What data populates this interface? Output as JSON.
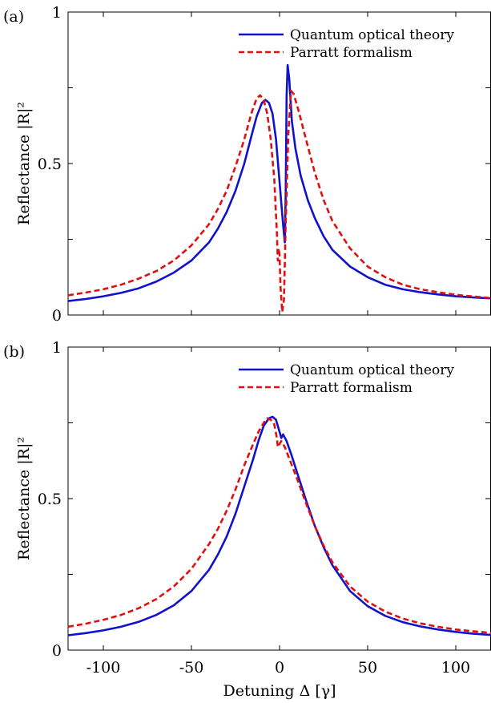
{
  "chart_data": [
    {
      "type": "line",
      "panel_label": "(a)",
      "xlabel": "",
      "ylabel": "Reflectance |R|²",
      "xlim": [
        -120,
        120
      ],
      "ylim": [
        0,
        1
      ],
      "x_ticks": [
        "-100",
        "-50",
        "0",
        "50",
        "100"
      ],
      "y_ticks": [
        "0",
        "0.5",
        "1"
      ],
      "legend_position": "top-right",
      "grid": false,
      "series": [
        {
          "name": "Quantum optical theory",
          "color": "#1111cc",
          "style": "solid",
          "points": [
            [
              -120,
              0.046
            ],
            [
              -110,
              0.053
            ],
            [
              -100,
              0.062
            ],
            [
              -90,
              0.073
            ],
            [
              -80,
              0.088
            ],
            [
              -70,
              0.11
            ],
            [
              -60,
              0.14
            ],
            [
              -50,
              0.18
            ],
            [
              -40,
              0.24
            ],
            [
              -35,
              0.285
            ],
            [
              -30,
              0.34
            ],
            [
              -25,
              0.41
            ],
            [
              -20,
              0.5
            ],
            [
              -16,
              0.59
            ],
            [
              -13,
              0.655
            ],
            [
              -10,
              0.7
            ],
            [
              -8,
              0.71
            ],
            [
              -6,
              0.7
            ],
            [
              -4,
              0.665
            ],
            [
              -2,
              0.58
            ],
            [
              0,
              0.44
            ],
            [
              2,
              0.3
            ],
            [
              3,
              0.24
            ],
            [
              3.5,
              0.4
            ],
            [
              4,
              0.72
            ],
            [
              4.6,
              0.825
            ],
            [
              5.5,
              0.78
            ],
            [
              7,
              0.64
            ],
            [
              9,
              0.55
            ],
            [
              12,
              0.46
            ],
            [
              16,
              0.38
            ],
            [
              20,
              0.32
            ],
            [
              25,
              0.26
            ],
            [
              30,
              0.215
            ],
            [
              40,
              0.16
            ],
            [
              50,
              0.125
            ],
            [
              60,
              0.1
            ],
            [
              70,
              0.085
            ],
            [
              80,
              0.075
            ],
            [
              90,
              0.068
            ],
            [
              100,
              0.062
            ],
            [
              110,
              0.058
            ],
            [
              120,
              0.055
            ]
          ]
        },
        {
          "name": "Parratt formalism",
          "color": "#e01010",
          "style": "dashed",
          "points": [
            [
              -120,
              0.065
            ],
            [
              -110,
              0.074
            ],
            [
              -100,
              0.085
            ],
            [
              -90,
              0.1
            ],
            [
              -80,
              0.12
            ],
            [
              -70,
              0.145
            ],
            [
              -60,
              0.18
            ],
            [
              -50,
              0.23
            ],
            [
              -40,
              0.3
            ],
            [
              -35,
              0.35
            ],
            [
              -30,
              0.41
            ],
            [
              -25,
              0.49
            ],
            [
              -20,
              0.58
            ],
            [
              -16,
              0.665
            ],
            [
              -13,
              0.715
            ],
            [
              -11,
              0.725
            ],
            [
              -9,
              0.71
            ],
            [
              -7,
              0.665
            ],
            [
              -5,
              0.58
            ],
            [
              -3,
              0.45
            ],
            [
              -1.5,
              0.27
            ],
            [
              -1,
              0.18
            ],
            [
              -0.5,
              0.22
            ],
            [
              0,
              0.2
            ],
            [
              0.5,
              0.1
            ],
            [
              1.5,
              0.01
            ],
            [
              2.5,
              0.05
            ],
            [
              3.5,
              0.3
            ],
            [
              5,
              0.6
            ],
            [
              6.5,
              0.74
            ],
            [
              8,
              0.73
            ],
            [
              11,
              0.67
            ],
            [
              15,
              0.58
            ],
            [
              20,
              0.47
            ],
            [
              25,
              0.38
            ],
            [
              30,
              0.31
            ],
            [
              40,
              0.22
            ],
            [
              50,
              0.16
            ],
            [
              60,
              0.125
            ],
            [
              70,
              0.1
            ],
            [
              80,
              0.085
            ],
            [
              90,
              0.075
            ],
            [
              100,
              0.067
            ],
            [
              110,
              0.061
            ],
            [
              120,
              0.056
            ]
          ]
        }
      ]
    },
    {
      "type": "line",
      "panel_label": "(b)",
      "xlabel": "Detuning Δ [γ]",
      "ylabel": "Reflectance |R|²",
      "xlim": [
        -120,
        120
      ],
      "ylim": [
        0,
        1
      ],
      "x_ticks": [
        "-100",
        "-50",
        "0",
        "50",
        "100"
      ],
      "y_ticks": [
        "0",
        "0.5",
        "1"
      ],
      "legend_position": "top-right",
      "grid": false,
      "series": [
        {
          "name": "Quantum optical theory",
          "color": "#1111cc",
          "style": "solid",
          "points": [
            [
              -120,
              0.049
            ],
            [
              -110,
              0.056
            ],
            [
              -100,
              0.065
            ],
            [
              -90,
              0.077
            ],
            [
              -80,
              0.093
            ],
            [
              -70,
              0.116
            ],
            [
              -60,
              0.148
            ],
            [
              -50,
              0.195
            ],
            [
              -40,
              0.265
            ],
            [
              -35,
              0.315
            ],
            [
              -30,
              0.375
            ],
            [
              -25,
              0.45
            ],
            [
              -20,
              0.54
            ],
            [
              -15,
              0.63
            ],
            [
              -12,
              0.69
            ],
            [
              -9,
              0.74
            ],
            [
              -6,
              0.765
            ],
            [
              -4,
              0.77
            ],
            [
              -2,
              0.76
            ],
            [
              0,
              0.72
            ],
            [
              1,
              0.7
            ],
            [
              2,
              0.712
            ],
            [
              4,
              0.69
            ],
            [
              7,
              0.64
            ],
            [
              10,
              0.585
            ],
            [
              15,
              0.495
            ],
            [
              20,
              0.41
            ],
            [
              25,
              0.34
            ],
            [
              30,
              0.28
            ],
            [
              40,
              0.195
            ],
            [
              50,
              0.145
            ],
            [
              60,
              0.113
            ],
            [
              70,
              0.092
            ],
            [
              80,
              0.078
            ],
            [
              90,
              0.068
            ],
            [
              100,
              0.06
            ],
            [
              110,
              0.054
            ],
            [
              120,
              0.05
            ]
          ]
        },
        {
          "name": "Parratt formalism",
          "color": "#e01010",
          "style": "dashed",
          "points": [
            [
              -120,
              0.077
            ],
            [
              -110,
              0.087
            ],
            [
              -100,
              0.1
            ],
            [
              -90,
              0.116
            ],
            [
              -80,
              0.138
            ],
            [
              -70,
              0.168
            ],
            [
              -60,
              0.21
            ],
            [
              -50,
              0.268
            ],
            [
              -40,
              0.35
            ],
            [
              -35,
              0.4
            ],
            [
              -30,
              0.46
            ],
            [
              -25,
              0.53
            ],
            [
              -20,
              0.61
            ],
            [
              -15,
              0.68
            ],
            [
              -12,
              0.72
            ],
            [
              -9,
              0.75
            ],
            [
              -7,
              0.765
            ],
            [
              -5,
              0.76
            ],
            [
              -3,
              0.745
            ],
            [
              -1.5,
              0.7
            ],
            [
              -1,
              0.67
            ],
            [
              0,
              0.68
            ],
            [
              1,
              0.69
            ],
            [
              3,
              0.67
            ],
            [
              6,
              0.625
            ],
            [
              10,
              0.565
            ],
            [
              15,
              0.485
            ],
            [
              20,
              0.41
            ],
            [
              25,
              0.345
            ],
            [
              30,
              0.29
            ],
            [
              40,
              0.21
            ],
            [
              50,
              0.16
            ],
            [
              60,
              0.127
            ],
            [
              70,
              0.104
            ],
            [
              80,
              0.088
            ],
            [
              90,
              0.077
            ],
            [
              100,
              0.068
            ],
            [
              110,
              0.062
            ],
            [
              120,
              0.057
            ]
          ]
        }
      ]
    }
  ]
}
